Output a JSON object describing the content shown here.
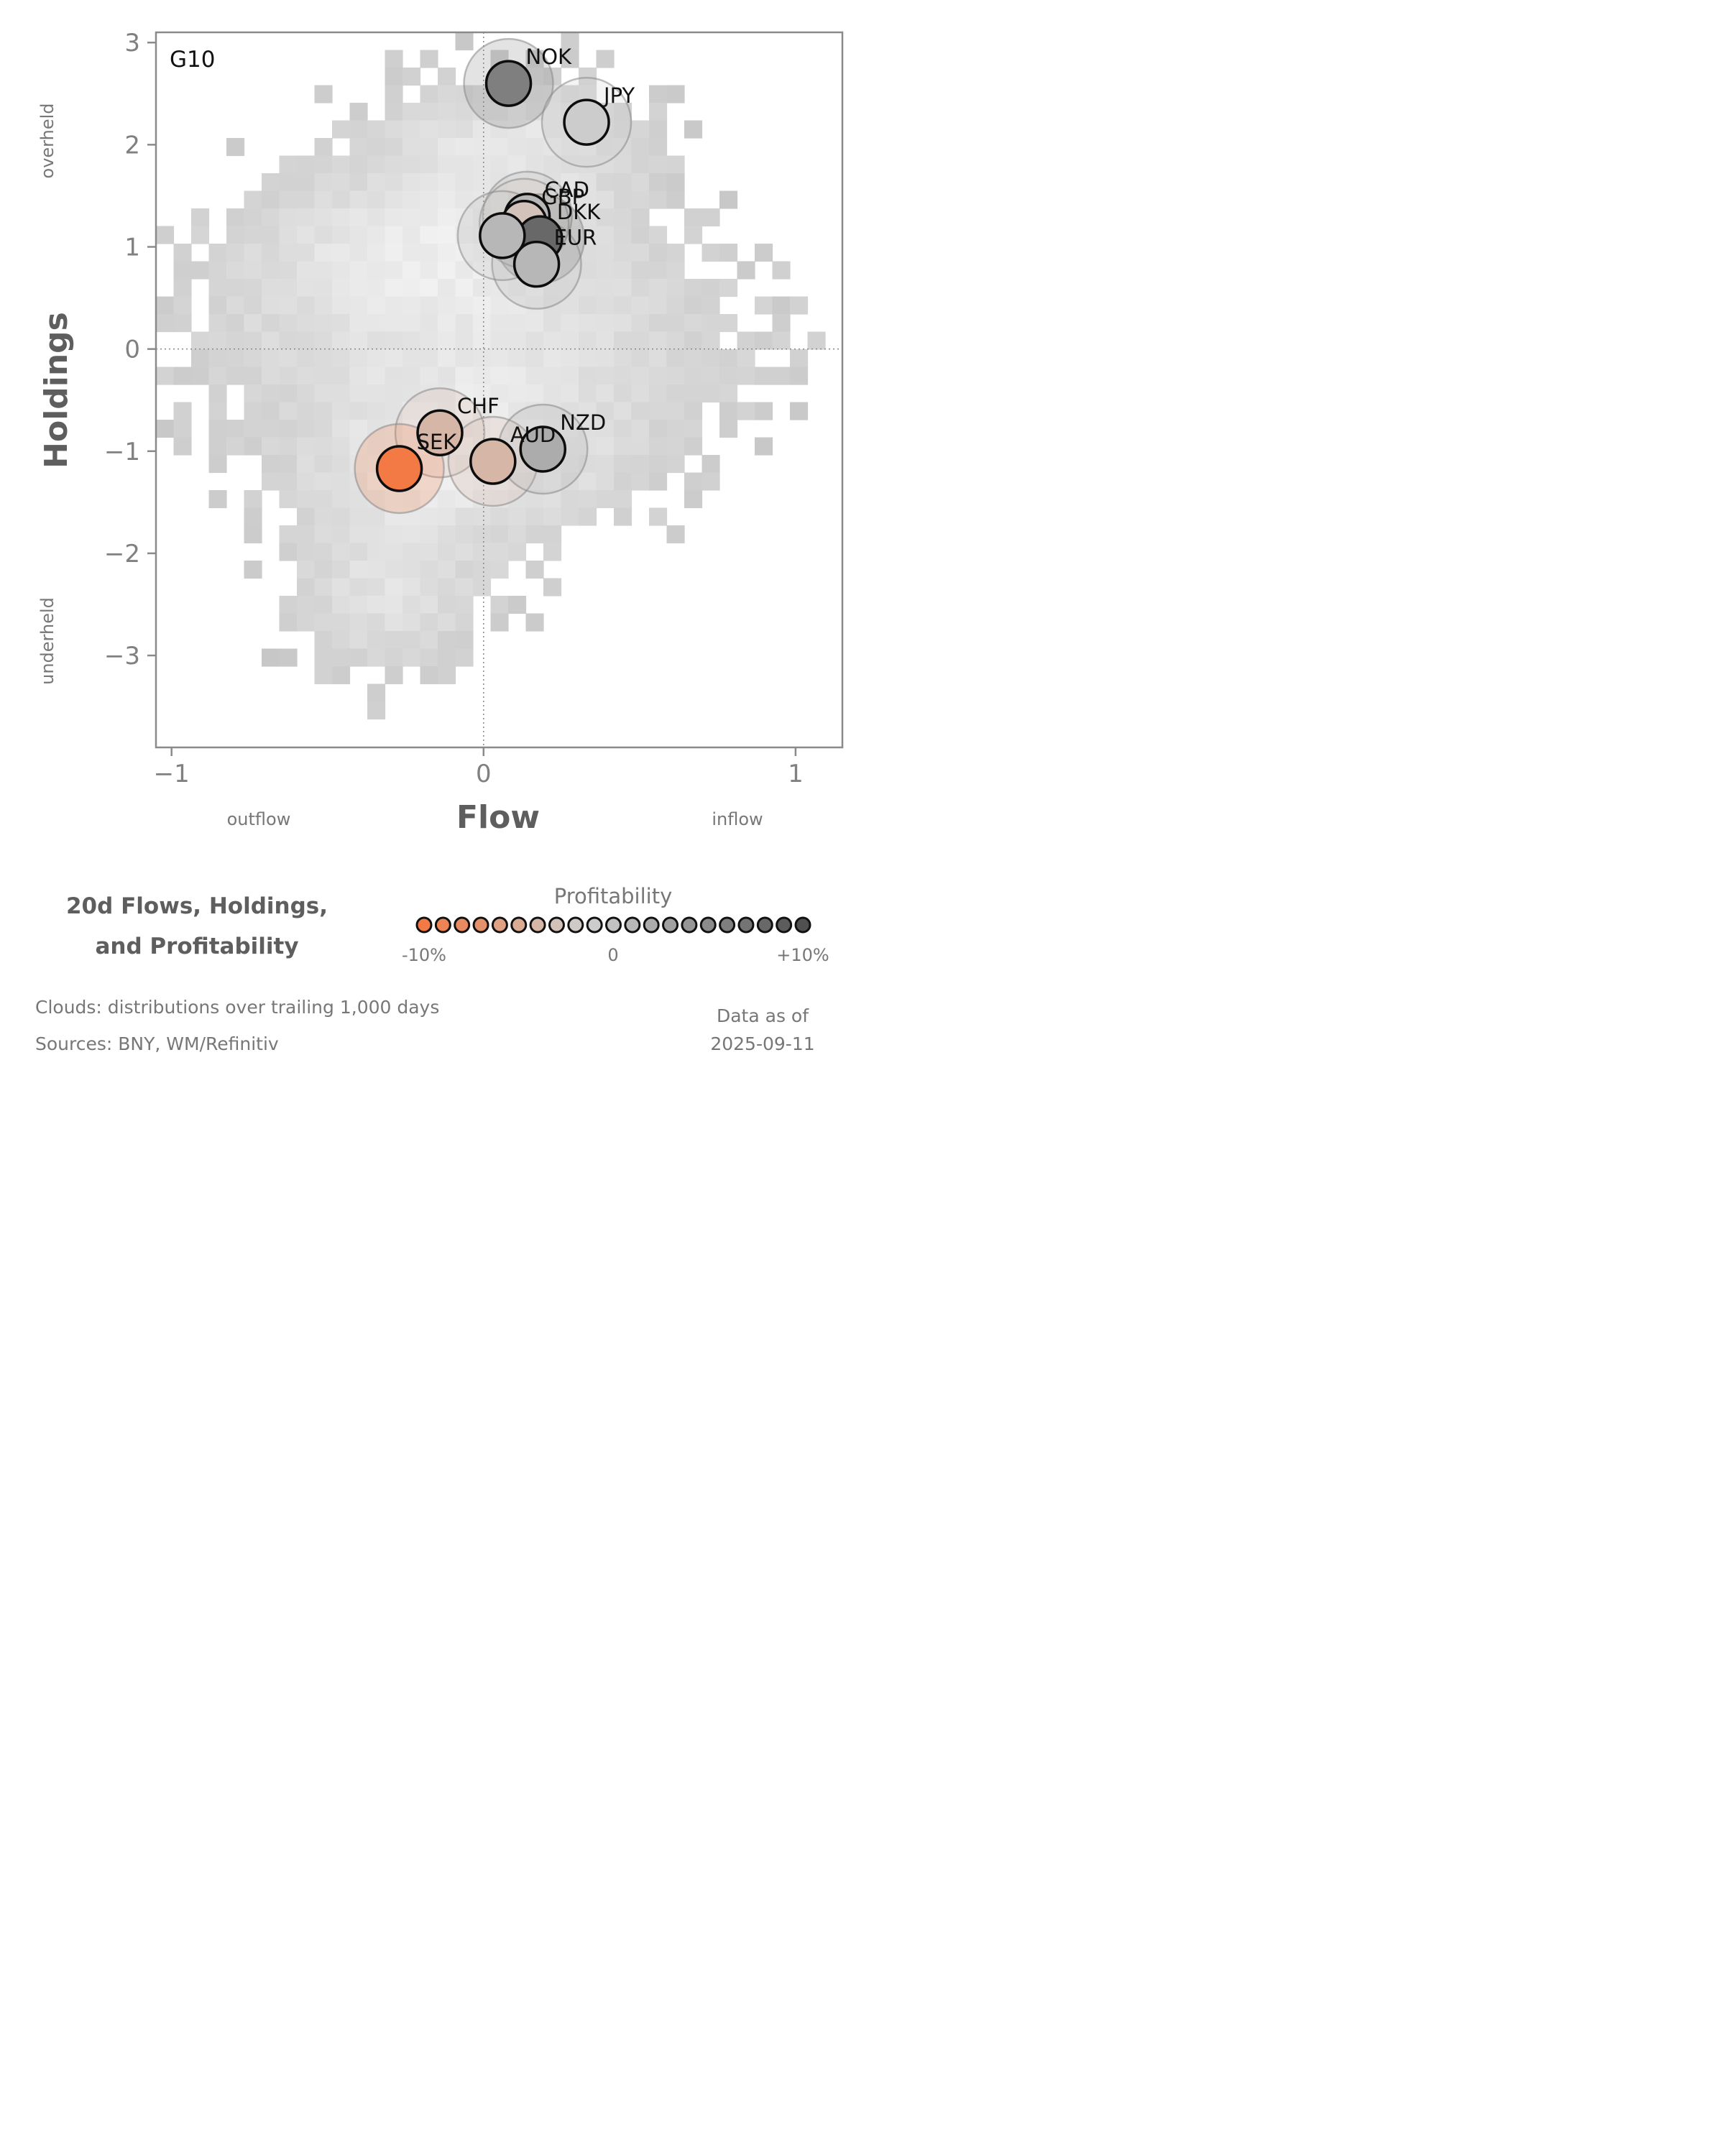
{
  "chart_data": {
    "type": "scatter",
    "panel_label": "G10",
    "xlabel": "Flow",
    "ylabel": "Holdings",
    "xlim": [
      -1.05,
      1.15
    ],
    "ylim": [
      -3.9,
      3.1
    ],
    "xticks": [
      {
        "v": -1,
        "label": "−1"
      },
      {
        "v": 0,
        "label": "0"
      },
      {
        "v": 1,
        "label": "1"
      }
    ],
    "yticks": [
      {
        "v": 3,
        "label": "3"
      },
      {
        "v": 2,
        "label": "2"
      },
      {
        "v": 1,
        "label": "1"
      },
      {
        "v": 0,
        "label": "0"
      },
      {
        "v": -1,
        "label": "−1"
      },
      {
        "v": -2,
        "label": "−2"
      },
      {
        "v": -3,
        "label": "−3"
      }
    ],
    "x_side_labels": {
      "left": "outflow",
      "right": "inflow"
    },
    "y_side_labels": {
      "top": "overheld",
      "bottom": "underheld"
    },
    "reference_lines": {
      "x": 0,
      "y": 0,
      "style": "dotted"
    },
    "series": [
      {
        "label": "NOK",
        "x": 0.08,
        "y": 2.6,
        "profitability": 0.06
      },
      {
        "label": "JPY",
        "x": 0.33,
        "y": 2.22,
        "profitability": -0.015
      },
      {
        "label": "CAD",
        "x": 0.14,
        "y": 1.3,
        "profitability": 0.005
      },
      {
        "label": "GBP",
        "x": 0.13,
        "y": 1.23,
        "profitability": -0.03
      },
      {
        "label": "DKK",
        "x": 0.18,
        "y": 1.08,
        "profitability": 0.08
      },
      {
        "label": "EUR",
        "x": 0.17,
        "y": 0.83,
        "profitability": 0.005
      },
      {
        "label": "CHF",
        "x": -0.14,
        "y": -0.82,
        "profitability": -0.04
      },
      {
        "label": "SEK",
        "x": -0.27,
        "y": -1.17,
        "profitability": -0.1
      },
      {
        "label": "AUD",
        "x": 0.03,
        "y": -1.1,
        "profitability": -0.045
      },
      {
        "label": "NZD",
        "x": 0.19,
        "y": -0.98,
        "profitability": 0.015
      },
      {
        "label": "",
        "x": 0.06,
        "y": 1.11,
        "profitability": 0.005
      }
    ],
    "cloud": {
      "description_source": "distributions over trailing 1,000 days"
    },
    "legend": {
      "title": "Profitability",
      "tick_labels": [
        "-10%",
        "0",
        "+10%"
      ],
      "steps": 21,
      "colors": [
        "#f47a45",
        "#ee8356",
        "#ea8a60",
        "#e5916b",
        "#e0a084",
        "#dbac94",
        "#d6b6a7",
        "#d2c2ba",
        "#cfcac6",
        "#cccccc",
        "#c2c2c2",
        "#b7b7b7",
        "#acacac",
        "#a1a1a1",
        "#969696",
        "#8b8b8b",
        "#7f7f7f",
        "#747474",
        "#686868",
        "#5c5c5c",
        "#505050"
      ]
    }
  },
  "footer": {
    "title_line1": "20d Flows, Holdings,",
    "title_line2": "and Profitability",
    "clouds_note": "Clouds:  distributions over trailing 1,000 days",
    "sources_note": "Sources:  BNY, WM/Refinitiv",
    "asof_line1": "Data as of",
    "asof_line2": "2025-09-11"
  }
}
